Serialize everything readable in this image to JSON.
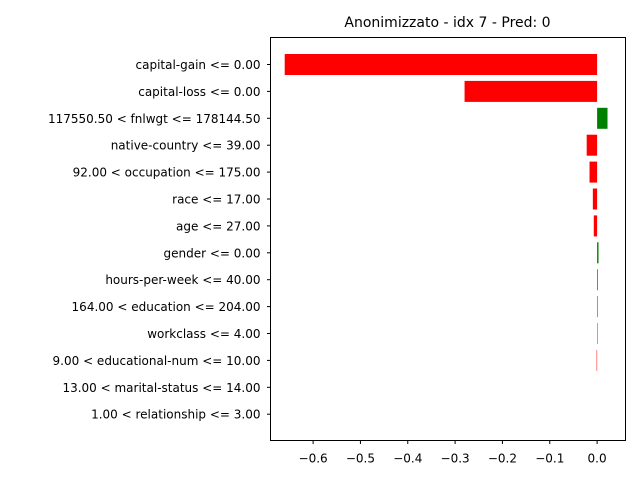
{
  "chart_data": {
    "type": "bar",
    "orientation": "horizontal",
    "title": "Anonimizzato - idx 7 - Pred: 0",
    "xlabel": "",
    "ylabel": "",
    "categories": [
      "capital-gain <= 0.00",
      "capital-loss <= 0.00",
      "117550.50 < fnlwgt <= 178144.50",
      "native-country <= 39.00",
      "92.00 < occupation <= 175.00",
      "race <= 17.00",
      "age <= 27.00",
      "gender <= 0.00",
      "hours-per-week <= 40.00",
      "164.00 < education <= 204.00",
      "workclass <= 4.00",
      "9.00 < educational-num <= 10.00",
      "13.00 < marital-status <= 14.00",
      "1.00 < relationship <= 3.00"
    ],
    "values": [
      -0.66,
      -0.28,
      0.022,
      -0.022,
      -0.016,
      -0.009,
      -0.007,
      0.003,
      0.0015,
      0.0012,
      0.001,
      -0.001,
      0.0,
      0.0
    ],
    "xlim": [
      -0.69,
      0.06
    ],
    "xticks": [
      -0.6,
      -0.5,
      -0.4,
      -0.3,
      -0.2,
      -0.1,
      0.0
    ],
    "xtick_labels": [
      "−0.6",
      "−0.5",
      "−0.4",
      "−0.3",
      "−0.2",
      "−0.1",
      "0.0"
    ],
    "colors": {
      "positive": "#008000",
      "negative": "#ff0000"
    },
    "grid": false,
    "legend": "none"
  }
}
